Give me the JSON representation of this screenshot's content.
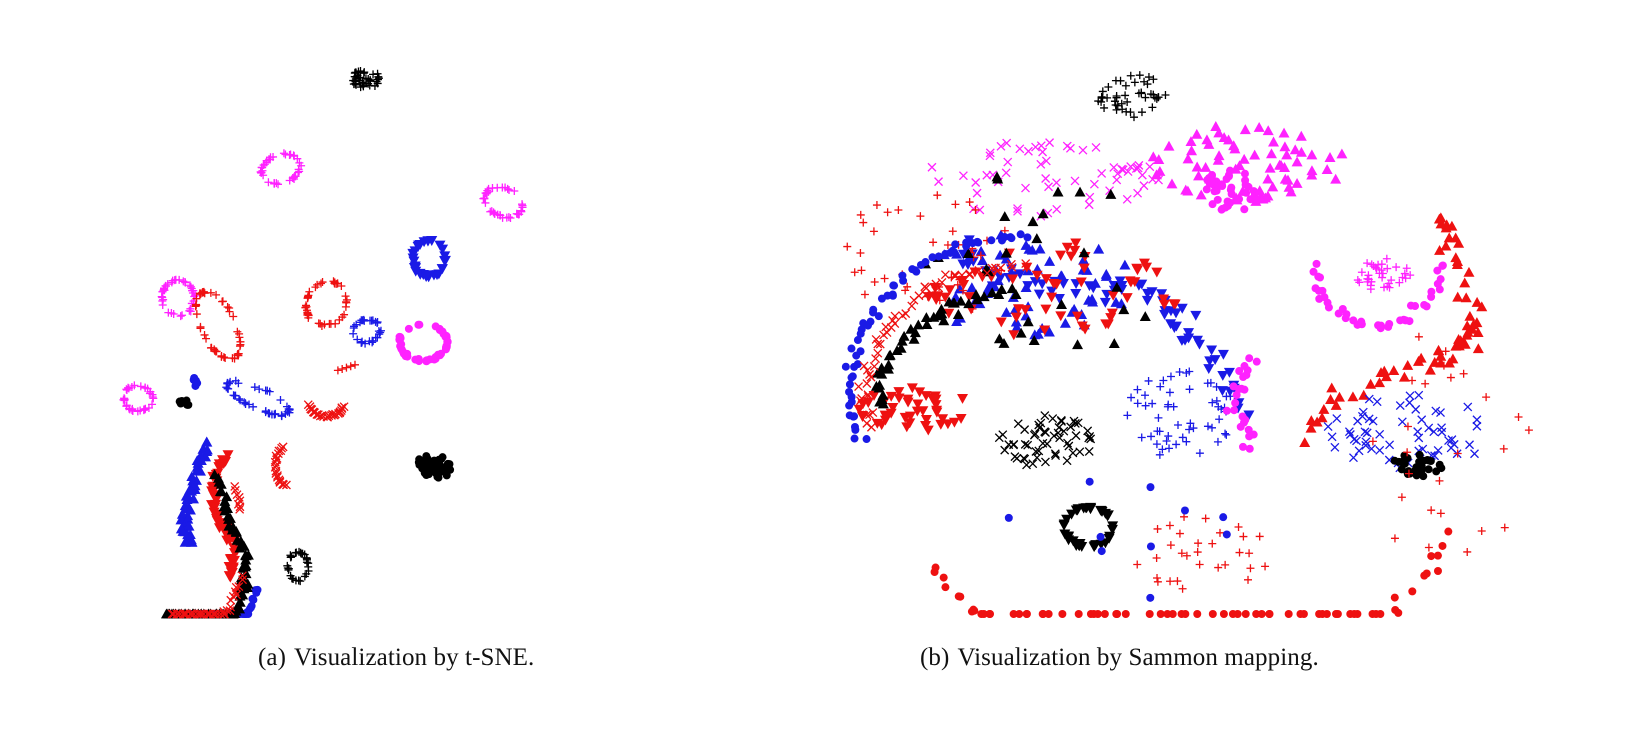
{
  "figure": {
    "captions": [
      {
        "tag": "(a)",
        "text": "Visualization by t-SNE."
      },
      {
        "tag": "(b)",
        "text": "Visualization by Sammon mapping."
      }
    ]
  },
  "colors": {
    "red": "#ee1111",
    "blue": "#1a1ae6",
    "magenta": "#ff22ff",
    "black": "#000000"
  },
  "chart_data": [
    {
      "type": "scatter",
      "title": "",
      "caption": "(a) Visualization by t-SNE.",
      "axes_visible": false,
      "grid": false,
      "legend": "none",
      "xlim": [
        0,
        100
      ],
      "ylim": [
        0,
        100
      ],
      "clusters": [
        {
          "color": "black",
          "marker": "plus",
          "shape": "blob",
          "center": [
            52,
            93
          ],
          "radius": [
            2.5,
            2
          ],
          "angle": 0,
          "count": 40
        },
        {
          "color": "magenta",
          "marker": "plus",
          "shape": "ring",
          "center": [
            37,
            77
          ],
          "radius": [
            3.5,
            2.5
          ],
          "angle": 20,
          "count": 40
        },
        {
          "color": "magenta",
          "marker": "plus",
          "shape": "ring",
          "center": [
            76,
            71
          ],
          "radius": [
            3.5,
            2.5
          ],
          "angle": -25,
          "count": 38
        },
        {
          "color": "blue",
          "marker": "triangle-down",
          "shape": "ring",
          "center": [
            63,
            61
          ],
          "radius": [
            2.8,
            3.2
          ],
          "angle": 0,
          "count": 34
        },
        {
          "color": "magenta",
          "marker": "plus",
          "shape": "ring",
          "center": [
            19,
            54
          ],
          "radius": [
            2.8,
            3.2
          ],
          "angle": 0,
          "count": 40
        },
        {
          "color": "red",
          "marker": "plus",
          "shape": "ring",
          "center": [
            26,
            49
          ],
          "radius": [
            3.0,
            6.5
          ],
          "angle": 25,
          "count": 48
        },
        {
          "color": "red",
          "marker": "plus",
          "shape": "ring",
          "center": [
            45,
            53
          ],
          "radius": [
            3.5,
            4.0
          ],
          "angle": -20,
          "count": 42
        },
        {
          "color": "blue",
          "marker": "plus",
          "shape": "ring",
          "center": [
            52,
            48
          ],
          "radius": [
            2.5,
            2.0
          ],
          "angle": 10,
          "count": 30
        },
        {
          "color": "magenta",
          "marker": "circle",
          "shape": "ring",
          "center": [
            62,
            46
          ],
          "radius": [
            4.2,
            3.2
          ],
          "angle": 0,
          "count": 48
        },
        {
          "color": "magenta",
          "marker": "plus",
          "shape": "ring",
          "center": [
            12,
            36
          ],
          "radius": [
            2.5,
            2.3
          ],
          "angle": 0,
          "count": 34
        },
        {
          "color": "blue",
          "marker": "plus",
          "shape": "ring",
          "center": [
            33,
            36
          ],
          "radius": [
            6.0,
            1.8
          ],
          "angle": -25,
          "count": 44
        },
        {
          "color": "red",
          "marker": "cross",
          "shape": "arc",
          "center": [
            45,
            35
          ],
          "radius": [
            3.0,
            2.2
          ],
          "angle": 0,
          "arc": [
            190,
            350
          ],
          "count": 26
        },
        {
          "color": "red",
          "marker": "cross",
          "shape": "arc",
          "center": [
            38,
            24
          ],
          "radius": [
            2.0,
            3.5
          ],
          "angle": 0,
          "arc": [
            110,
            270
          ],
          "count": 22
        },
        {
          "color": "black",
          "marker": "circle",
          "shape": "blob",
          "center": [
            64,
            24
          ],
          "radius": [
            3.0,
            2.2
          ],
          "angle": -15,
          "count": 40
        },
        {
          "color": "black",
          "marker": "plus",
          "shape": "ring",
          "center": [
            40,
            6
          ],
          "radius": [
            1.8,
            2.5
          ],
          "angle": 0,
          "count": 30
        },
        {
          "color": "black",
          "marker": "circle",
          "shape": "blob",
          "center": [
            20,
            35
          ],
          "radius": [
            0.9,
            0.9
          ],
          "angle": 0,
          "count": 6
        },
        {
          "color": "blue",
          "marker": "circle",
          "shape": "blob",
          "center": [
            22,
            39
          ],
          "radius": [
            0.7,
            0.9
          ],
          "angle": 0,
          "count": 5
        },
        {
          "color": "red",
          "marker": "plus",
          "shape": "line",
          "from": [
            47,
            41
          ],
          "to": [
            50,
            42
          ],
          "count": 5
        },
        {
          "color": "blue",
          "marker": "triangle-up",
          "shape": "curve",
          "points": [
            [
              24,
              28
            ],
            [
              22,
              22
            ],
            [
              20,
              15
            ],
            [
              21,
              10
            ]
          ],
          "width": 1.2,
          "count": 50
        },
        {
          "color": "red",
          "marker": "triangle-down",
          "shape": "curve",
          "points": [
            [
              27,
              26
            ],
            [
              25,
              20
            ],
            [
              26,
              14
            ],
            [
              29,
              10
            ],
            [
              28,
              4
            ]
          ],
          "width": 1.0,
          "count": 55
        },
        {
          "color": "black",
          "marker": "triangle-up",
          "shape": "curve",
          "points": [
            [
              26,
              22
            ],
            [
              28,
              14
            ],
            [
              31,
              8
            ],
            [
              30,
              2
            ]
          ],
          "width": 0.9,
          "count": 40
        },
        {
          "color": "blue",
          "marker": "circle",
          "shape": "curve",
          "points": [
            [
              33,
              2
            ],
            [
              30,
              -6
            ],
            [
              25,
              -10
            ],
            [
              18,
              -11
            ]
          ],
          "width": 0.9,
          "count": 45
        },
        {
          "color": "black",
          "marker": "triangle-up",
          "shape": "curve",
          "points": [
            [
              31,
              3
            ],
            [
              28,
              -5
            ],
            [
              22,
              -9
            ],
            [
              17,
              -10
            ]
          ],
          "width": 0.8,
          "count": 40
        },
        {
          "color": "red",
          "marker": "cross",
          "shape": "curve",
          "points": [
            [
              30,
              4
            ],
            [
              27,
              -4
            ],
            [
              22,
              -8
            ],
            [
              18,
              -8
            ]
          ],
          "width": 0.9,
          "count": 40
        },
        {
          "color": "red",
          "marker": "cross",
          "shape": "curve",
          "points": [
            [
              29,
              20
            ],
            [
              30,
              16
            ]
          ],
          "width": 0.6,
          "count": 8
        }
      ]
    },
    {
      "type": "scatter",
      "title": "",
      "caption": "(b) Visualization by Sammon mapping.",
      "axes_visible": false,
      "grid": false,
      "legend": "none",
      "xlim": [
        0,
        100
      ],
      "ylim": [
        0,
        100
      ],
      "clusters": [
        {
          "color": "red",
          "marker": "circle",
          "shape": "arc",
          "center": [
            50,
            40
          ],
          "radius": [
            44,
            58
          ],
          "angle": 0,
          "arc": [
            215,
            330
          ],
          "width": 2.5,
          "count": 70
        },
        {
          "color": "black",
          "marker": "plus",
          "shape": "blob",
          "center": [
            43,
            90
          ],
          "radius": [
            5,
            4
          ],
          "angle": 0,
          "count": 45
        },
        {
          "color": "magenta",
          "marker": "triangle-up",
          "shape": "blob",
          "center": [
            60,
            78
          ],
          "radius": [
            14,
            7
          ],
          "angle": 0,
          "count": 70
        },
        {
          "color": "magenta",
          "marker": "circle",
          "shape": "blob",
          "center": [
            57,
            73
          ],
          "radius": [
            4,
            4
          ],
          "angle": 0,
          "count": 40
        },
        {
          "color": "magenta",
          "marker": "circle",
          "shape": "arc",
          "center": [
            78,
            60
          ],
          "radius": [
            9,
            11
          ],
          "angle": 0,
          "arc": [
            180,
            360
          ],
          "width": 1.5,
          "count": 40
        },
        {
          "color": "magenta",
          "marker": "plus",
          "shape": "blob",
          "center": [
            79,
            58
          ],
          "radius": [
            4,
            3
          ],
          "angle": 0,
          "count": 35
        },
        {
          "color": "magenta",
          "marker": "cross",
          "shape": "blob",
          "center": [
            30,
            75
          ],
          "radius": [
            17,
            7
          ],
          "angle": 0,
          "count": 60
        },
        {
          "color": "blue",
          "marker": "triangle-down",
          "shape": "curve",
          "points": [
            [
              18,
              62
            ],
            [
              30,
              55
            ],
            [
              45,
              55
            ],
            [
              52,
              48
            ],
            [
              58,
              35
            ]
          ],
          "width": 4,
          "count": 70
        },
        {
          "color": "blue",
          "marker": "triangle-up",
          "shape": "blob",
          "center": [
            28,
            57
          ],
          "radius": [
            16,
            10
          ],
          "angle": 0,
          "count": 60
        },
        {
          "color": "red",
          "marker": "triangle-down",
          "shape": "blob",
          "center": [
            32,
            55
          ],
          "radius": [
            18,
            9
          ],
          "angle": 0,
          "count": 60
        },
        {
          "color": "red",
          "marker": "triangle-down",
          "shape": "blob",
          "center": [
            12,
            34
          ],
          "radius": [
            8,
            4
          ],
          "angle": 0,
          "count": 45
        },
        {
          "color": "red",
          "marker": "plus",
          "shape": "blob",
          "center": [
            14,
            62
          ],
          "radius": [
            12,
            12
          ],
          "angle": 0,
          "count": 40
        },
        {
          "color": "black",
          "marker": "triangle-up",
          "shape": "blob",
          "center": [
            30,
            60
          ],
          "radius": [
            18,
            18
          ],
          "angle": 0,
          "count": 30
        },
        {
          "color": "blue",
          "marker": "circle",
          "shape": "arc",
          "center": [
            28,
            38
          ],
          "radius": [
            25,
            27
          ],
          "angle": 0,
          "arc": [
            90,
            200
          ],
          "width": 1.2,
          "count": 60
        },
        {
          "color": "black",
          "marker": "triangle-up",
          "shape": "arc",
          "center": [
            28,
            36
          ],
          "radius": [
            21,
            19
          ],
          "angle": 0,
          "arc": [
            95,
            185
          ],
          "width": 1.2,
          "count": 40
        },
        {
          "color": "red",
          "marker": "cross",
          "shape": "arc",
          "center": [
            28,
            37
          ],
          "radius": [
            23,
            23
          ],
          "angle": 0,
          "arc": [
            90,
            195
          ],
          "width": 1.5,
          "count": 55
        },
        {
          "color": "black",
          "marker": "cross",
          "shape": "blob",
          "center": [
            31,
            28
          ],
          "radius": [
            7,
            5
          ],
          "angle": 0,
          "count": 55
        },
        {
          "color": "black",
          "marker": "triangle-down",
          "shape": "ring",
          "center": [
            37,
            13
          ],
          "radius": [
            3.5,
            3.5
          ],
          "angle": 0,
          "count": 40
        },
        {
          "color": "blue",
          "marker": "plus",
          "shape": "blob",
          "center": [
            50,
            33
          ],
          "radius": [
            8,
            8
          ],
          "angle": 0,
          "count": 55
        },
        {
          "color": "magenta",
          "marker": "circle",
          "shape": "curve",
          "points": [
            [
              60,
              43
            ],
            [
              58,
              35
            ],
            [
              60,
              27
            ]
          ],
          "width": 2,
          "count": 25
        },
        {
          "color": "red",
          "marker": "triangle-up",
          "shape": "curve",
          "points": [
            [
              68,
              30
            ],
            [
              75,
              38
            ],
            [
              85,
              42
            ],
            [
              90,
              45
            ],
            [
              93,
              50
            ],
            [
              90,
              62
            ],
            [
              87,
              68
            ]
          ],
          "width": 3,
          "count": 65
        },
        {
          "color": "blue",
          "marker": "cross",
          "shape": "blob",
          "center": [
            83,
            30
          ],
          "radius": [
            12,
            7
          ],
          "angle": 0,
          "count": 60
        },
        {
          "color": "black",
          "marker": "circle",
          "shape": "blob",
          "center": [
            84,
            24
          ],
          "radius": [
            3.5,
            2
          ],
          "angle": -10,
          "count": 30
        },
        {
          "color": "red",
          "marker": "plus",
          "shape": "blob",
          "center": [
            52,
            8
          ],
          "radius": [
            12,
            7
          ],
          "angle": 0,
          "count": 30
        },
        {
          "color": "red",
          "marker": "plus",
          "shape": "blob",
          "center": [
            88,
            28
          ],
          "radius": [
            12,
            22
          ],
          "angle": 0,
          "count": 25
        },
        {
          "color": "blue",
          "marker": "circle",
          "shape": "blob",
          "center": [
            40,
            10
          ],
          "radius": [
            18,
            12
          ],
          "angle": 0,
          "count": 10
        }
      ]
    }
  ]
}
